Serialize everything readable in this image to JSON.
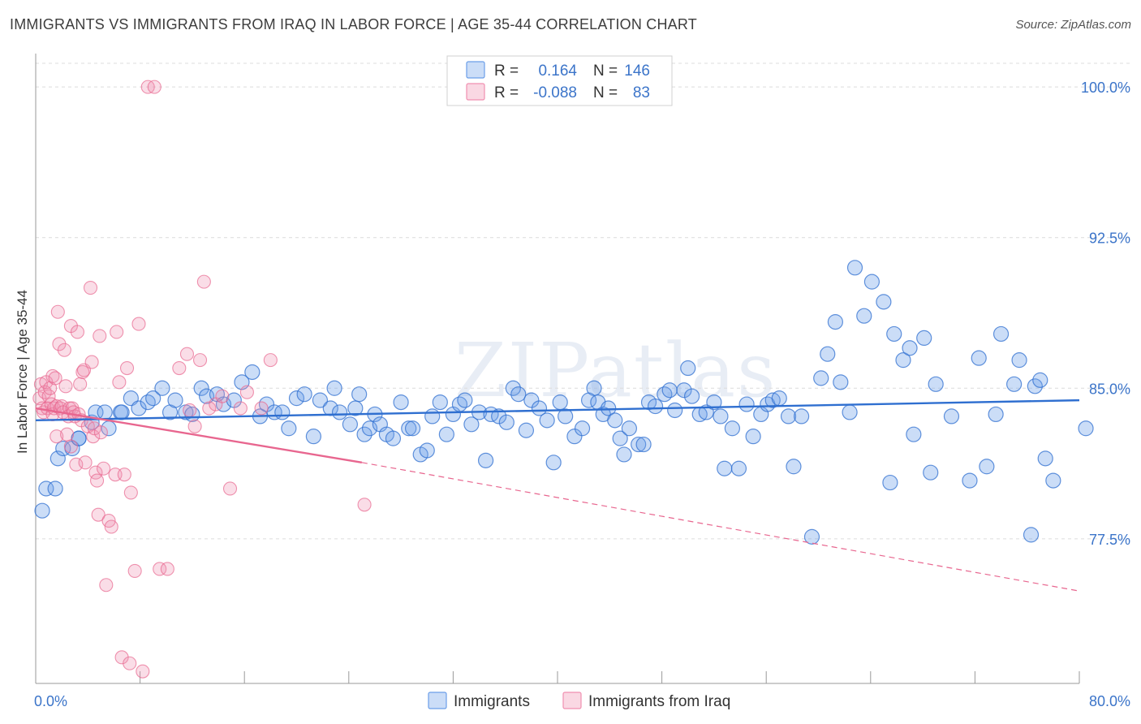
{
  "title": "IMMIGRANTS VS IMMIGRANTS FROM IRAQ IN LABOR FORCE | AGE 35-44 CORRELATION CHART",
  "source": "Source: ZipAtlas.com",
  "watermark": "ZIPatlas",
  "chart_data": {
    "type": "scatter",
    "xlabel": "",
    "ylabel": "In Labor Force | Age 35-44",
    "xlim": [
      0,
      80
    ],
    "ylim": [
      70.3,
      101.5
    ],
    "x_tick_labels": [
      "0.0%",
      "80.0%"
    ],
    "y_ticks": [
      77.5,
      85.0,
      92.5,
      100.0
    ],
    "y_tick_labels": [
      "77.5%",
      "85.0%",
      "92.5%",
      "100.0%"
    ],
    "grid": true,
    "legend_top": [
      {
        "r_label": "R =",
        "r_value": "0.164",
        "n_label": "N =",
        "n_value": "146",
        "color": "#6b9ee8"
      },
      {
        "r_label": "R =",
        "r_value": "-0.088",
        "n_label": "N =",
        "n_value": "83",
        "color": "#f08fb0"
      }
    ],
    "legend_bottom": [
      "Immigrants",
      "Immigrants from Iraq"
    ],
    "colors": {
      "blue": "#6b9ee8",
      "blue_line": "#2f6fd0",
      "pink": "#f08fb0",
      "pink_line": "#e8668f",
      "tick": "#3b74c9"
    },
    "trendlines": [
      {
        "series": "Immigrants",
        "x": [
          0,
          80
        ],
        "y": [
          83.4,
          84.4
        ],
        "style": "solid"
      },
      {
        "series": "Immigrants from Iraq",
        "x": [
          0,
          25
        ],
        "y": [
          84.0,
          81.3
        ],
        "style": "solid"
      },
      {
        "series": "Immigrants from Iraq",
        "x": [
          25,
          80
        ],
        "y": [
          81.3,
          74.9
        ],
        "style": "dashed"
      }
    ],
    "series": [
      {
        "name": "Immigrants",
        "points": [
          [
            0.5,
            78.9
          ],
          [
            0.8,
            80.0
          ],
          [
            1.5,
            80.0
          ],
          [
            1.7,
            81.5
          ],
          [
            2.1,
            82.0
          ],
          [
            2.8,
            82.0
          ],
          [
            3.3,
            82.5
          ],
          [
            3.3,
            82.5
          ],
          [
            4.3,
            83.3
          ],
          [
            4.6,
            83.8
          ],
          [
            5.3,
            83.8
          ],
          [
            5.6,
            83.0
          ],
          [
            6.5,
            83.8
          ],
          [
            6.6,
            83.8
          ],
          [
            7.3,
            84.5
          ],
          [
            7.9,
            84.0
          ],
          [
            8.6,
            84.3
          ],
          [
            9.0,
            84.5
          ],
          [
            9.7,
            85.0
          ],
          [
            10.3,
            83.8
          ],
          [
            10.7,
            84.4
          ],
          [
            11.5,
            83.8
          ],
          [
            12.0,
            83.7
          ],
          [
            12.7,
            85.0
          ],
          [
            13.1,
            84.6
          ],
          [
            13.9,
            84.7
          ],
          [
            14.4,
            84.2
          ],
          [
            15.2,
            84.4
          ],
          [
            15.8,
            85.3
          ],
          [
            16.6,
            85.8
          ],
          [
            17.2,
            83.6
          ],
          [
            17.7,
            84.2
          ],
          [
            18.3,
            83.8
          ],
          [
            18.9,
            83.8
          ],
          [
            19.4,
            83.0
          ],
          [
            20.0,
            84.5
          ],
          [
            20.6,
            84.7
          ],
          [
            21.3,
            82.6
          ],
          [
            21.8,
            84.4
          ],
          [
            22.6,
            84.0
          ],
          [
            22.9,
            85.0
          ],
          [
            23.3,
            83.8
          ],
          [
            24.1,
            83.2
          ],
          [
            24.5,
            84.0
          ],
          [
            24.8,
            84.7
          ],
          [
            25.2,
            82.7
          ],
          [
            25.6,
            83.0
          ],
          [
            26.0,
            83.7
          ],
          [
            26.4,
            83.2
          ],
          [
            26.9,
            82.7
          ],
          [
            27.4,
            82.5
          ],
          [
            28.0,
            84.3
          ],
          [
            28.6,
            83.0
          ],
          [
            28.9,
            83.0
          ],
          [
            29.5,
            81.7
          ],
          [
            30.0,
            81.9
          ],
          [
            30.4,
            83.6
          ],
          [
            31.0,
            84.3
          ],
          [
            31.5,
            82.7
          ],
          [
            32.0,
            83.7
          ],
          [
            32.5,
            84.2
          ],
          [
            32.9,
            84.4
          ],
          [
            33.4,
            83.2
          ],
          [
            34.0,
            83.8
          ],
          [
            34.5,
            81.4
          ],
          [
            34.9,
            83.7
          ],
          [
            35.5,
            83.6
          ],
          [
            36.1,
            83.3
          ],
          [
            36.6,
            85.0
          ],
          [
            37.0,
            84.7
          ],
          [
            37.6,
            82.9
          ],
          [
            38.0,
            84.4
          ],
          [
            38.6,
            84.0
          ],
          [
            39.2,
            83.4
          ],
          [
            39.7,
            81.3
          ],
          [
            40.2,
            84.3
          ],
          [
            40.6,
            83.6
          ],
          [
            41.3,
            82.6
          ],
          [
            41.9,
            83.0
          ],
          [
            42.4,
            84.4
          ],
          [
            42.8,
            85.0
          ],
          [
            43.1,
            84.3
          ],
          [
            43.5,
            83.7
          ],
          [
            43.9,
            84.0
          ],
          [
            44.4,
            83.4
          ],
          [
            44.8,
            82.5
          ],
          [
            45.1,
            81.7
          ],
          [
            45.5,
            83.0
          ],
          [
            46.2,
            82.2
          ],
          [
            46.6,
            82.2
          ],
          [
            47.0,
            84.3
          ],
          [
            47.5,
            84.1
          ],
          [
            48.2,
            84.7
          ],
          [
            48.6,
            84.9
          ],
          [
            49.0,
            83.9
          ],
          [
            49.7,
            84.9
          ],
          [
            50.0,
            86.0
          ],
          [
            50.3,
            84.6
          ],
          [
            50.9,
            83.7
          ],
          [
            51.4,
            83.8
          ],
          [
            52.0,
            84.3
          ],
          [
            52.5,
            83.6
          ],
          [
            52.8,
            81.0
          ],
          [
            53.4,
            83.0
          ],
          [
            53.9,
            81.0
          ],
          [
            54.5,
            84.2
          ],
          [
            55.0,
            82.6
          ],
          [
            55.6,
            83.7
          ],
          [
            56.1,
            84.2
          ],
          [
            56.5,
            84.4
          ],
          [
            57.0,
            84.5
          ],
          [
            57.7,
            83.6
          ],
          [
            58.1,
            81.1
          ],
          [
            58.7,
            83.6
          ],
          [
            59.5,
            77.6
          ],
          [
            60.2,
            85.5
          ],
          [
            60.7,
            86.7
          ],
          [
            61.3,
            88.3
          ],
          [
            61.7,
            85.3
          ],
          [
            62.4,
            83.8
          ],
          [
            62.8,
            91.0
          ],
          [
            63.5,
            88.6
          ],
          [
            64.1,
            90.3
          ],
          [
            65.0,
            89.3
          ],
          [
            65.5,
            80.3
          ],
          [
            65.8,
            87.7
          ],
          [
            66.5,
            86.4
          ],
          [
            67.0,
            87.0
          ],
          [
            67.3,
            82.7
          ],
          [
            68.1,
            87.5
          ],
          [
            68.6,
            80.8
          ],
          [
            69.0,
            85.2
          ],
          [
            70.2,
            83.6
          ],
          [
            71.6,
            80.4
          ],
          [
            72.3,
            86.5
          ],
          [
            72.9,
            81.1
          ],
          [
            73.6,
            83.7
          ],
          [
            74.0,
            87.7
          ],
          [
            75.0,
            85.2
          ],
          [
            75.4,
            86.4
          ],
          [
            76.3,
            77.7
          ],
          [
            76.6,
            85.1
          ],
          [
            77.0,
            85.4
          ],
          [
            77.4,
            81.5
          ],
          [
            78.0,
            80.4
          ],
          [
            80.5,
            83.0
          ]
        ]
      },
      {
        "name": "Immigrants from Iraq",
        "points": [
          [
            0.3,
            84.5
          ],
          [
            0.4,
            85.2
          ],
          [
            0.5,
            84.0
          ],
          [
            0.6,
            83.8
          ],
          [
            0.7,
            84.8
          ],
          [
            0.8,
            85.3
          ],
          [
            0.9,
            84.0
          ],
          [
            1.0,
            84.6
          ],
          [
            1.1,
            85.0
          ],
          [
            1.2,
            84.2
          ],
          [
            1.3,
            85.6
          ],
          [
            1.3,
            83.7
          ],
          [
            1.4,
            84.0
          ],
          [
            1.5,
            85.5
          ],
          [
            1.6,
            84.1
          ],
          [
            1.6,
            82.6
          ],
          [
            1.7,
            88.8
          ],
          [
            1.8,
            87.2
          ],
          [
            1.9,
            84.0
          ],
          [
            2.0,
            84.1
          ],
          [
            2.1,
            83.8
          ],
          [
            2.2,
            86.9
          ],
          [
            2.3,
            85.1
          ],
          [
            2.4,
            82.7
          ],
          [
            2.5,
            83.6
          ],
          [
            2.6,
            84.0
          ],
          [
            2.7,
            82.1
          ],
          [
            2.7,
            88.1
          ],
          [
            2.8,
            84.0
          ],
          [
            2.9,
            83.8
          ],
          [
            3.0,
            83.6
          ],
          [
            3.1,
            81.2
          ],
          [
            3.2,
            87.8
          ],
          [
            3.3,
            83.7
          ],
          [
            3.4,
            85.2
          ],
          [
            3.5,
            83.4
          ],
          [
            3.6,
            85.8
          ],
          [
            3.7,
            85.9
          ],
          [
            3.8,
            81.3
          ],
          [
            4.0,
            83.1
          ],
          [
            4.2,
            90.0
          ],
          [
            4.3,
            86.3
          ],
          [
            4.4,
            82.6
          ],
          [
            4.5,
            83.0
          ],
          [
            4.6,
            80.8
          ],
          [
            4.7,
            80.4
          ],
          [
            4.8,
            78.7
          ],
          [
            4.9,
            87.6
          ],
          [
            5.0,
            82.8
          ],
          [
            5.2,
            81.0
          ],
          [
            5.4,
            75.2
          ],
          [
            5.6,
            78.4
          ],
          [
            5.8,
            78.1
          ],
          [
            6.1,
            80.7
          ],
          [
            6.2,
            87.8
          ],
          [
            6.4,
            85.3
          ],
          [
            6.6,
            71.6
          ],
          [
            6.8,
            80.7
          ],
          [
            7.0,
            86.0
          ],
          [
            7.2,
            71.3
          ],
          [
            7.3,
            79.8
          ],
          [
            7.6,
            75.9
          ],
          [
            7.9,
            88.2
          ],
          [
            8.2,
            70.9
          ],
          [
            8.6,
            100.0
          ],
          [
            9.1,
            100.0
          ],
          [
            9.5,
            76.0
          ],
          [
            10.1,
            76.0
          ],
          [
            11.0,
            86.0
          ],
          [
            11.6,
            86.7
          ],
          [
            11.8,
            83.9
          ],
          [
            12.2,
            83.1
          ],
          [
            12.6,
            86.4
          ],
          [
            12.9,
            90.3
          ],
          [
            13.3,
            84.0
          ],
          [
            13.8,
            84.2
          ],
          [
            14.3,
            84.6
          ],
          [
            14.9,
            80.0
          ],
          [
            15.7,
            84.0
          ],
          [
            16.2,
            84.8
          ],
          [
            17.3,
            84.0
          ],
          [
            18.0,
            86.4
          ],
          [
            25.2,
            79.2
          ]
        ]
      }
    ]
  }
}
